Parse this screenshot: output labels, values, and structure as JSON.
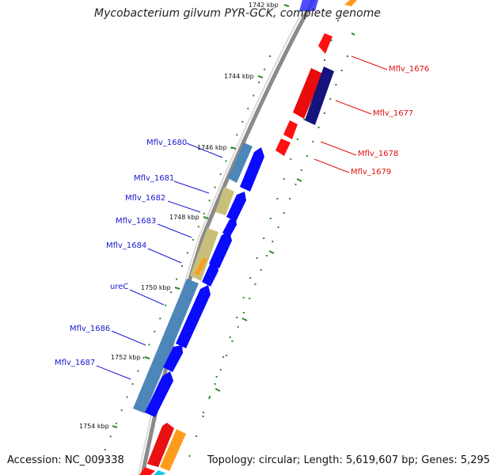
{
  "title": "Mycobacterium gilvum PYR-GCK, complete genome",
  "footer": {
    "accession": "Accession: NC_009338",
    "summary": "Topology: circular; Length: 5,619,607 bp; Genes: 5,295"
  },
  "colors": {
    "cds_forward": "#0a0aff",
    "cds_reverse_red": "#ff1010",
    "cds_reverse_navy": "#10107a",
    "gene_steelblue": "#4d86b8",
    "gene_khaki": "#c8c07a",
    "orange": "#ff9b1a",
    "label_forward": "#1a1ad0",
    "label_reverse": "#e21010",
    "tick": "#2a8a2a"
  },
  "ruler_labels": [
    "1742 kbp",
    "1744 kbp",
    "1746 kbp",
    "1748 kbp",
    "1750 kbp",
    "1752 kbp",
    "1754 kbp"
  ],
  "gene_labels_forward": [
    "Mflv_1680",
    "Mflv_1681",
    "Mflv_1682",
    "Mflv_1683",
    "Mflv_1684",
    "ureC",
    "Mflv_1686",
    "Mflv_1687"
  ],
  "gene_labels_reverse": [
    "Mflv_1676",
    "Mflv_1677",
    "Mflv_1678",
    "Mflv_1679"
  ]
}
